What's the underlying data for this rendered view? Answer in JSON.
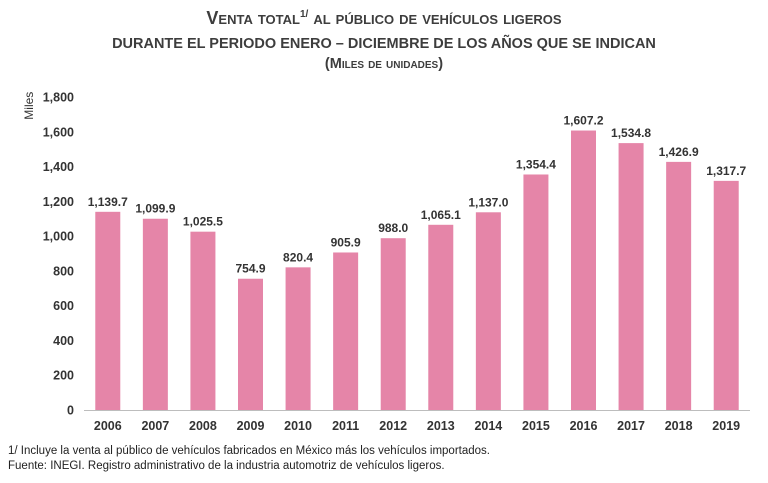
{
  "header": {
    "title_main": "Venta total",
    "title_sup": "1/",
    "title_rest": " al público de vehículos ligeros",
    "subtitle": "DURANTE EL PERIODO ENERO – DICIEMBRE DE LOS AÑOS QUE SE INDICAN",
    "units": "(Miles de unidades)"
  },
  "chart_data": {
    "type": "bar",
    "title": "Venta total al público de vehículos ligeros",
    "ylabel": "Miles",
    "xlabel": "",
    "ylim": [
      0,
      1800
    ],
    "yticks": [
      0,
      200,
      400,
      600,
      800,
      1000,
      1200,
      1400,
      1600,
      1800
    ],
    "ytick_labels": [
      "0",
      "200",
      "400",
      "600",
      "800",
      "1,000",
      "1,200",
      "1,400",
      "1,600",
      "1,800"
    ],
    "categories": [
      "2006",
      "2007",
      "2008",
      "2009",
      "2010",
      "2011",
      "2012",
      "2013",
      "2014",
      "2015",
      "2016",
      "2017",
      "2018",
      "2019"
    ],
    "values": [
      1139.7,
      1099.9,
      1025.5,
      754.9,
      820.4,
      905.9,
      988.0,
      1065.1,
      1137.0,
      1354.4,
      1607.2,
      1534.8,
      1426.9,
      1317.7
    ],
    "value_labels": [
      "1,139.7",
      "1,099.9",
      "1,025.5",
      "754.9",
      "820.4",
      "905.9",
      "988.0",
      "1,065.1",
      "1,137.0",
      "1,354.4",
      "1,607.2",
      "1,534.8",
      "1,426.9",
      "1,317.7"
    ],
    "bar_color": "#e585a8",
    "grid": false,
    "legend": "none"
  },
  "footnotes": {
    "note": "1/ Incluye la venta al público de vehículos fabricados en México más los vehículos importados.",
    "source": "Fuente: INEGI. Registro administrativo de la industria automotriz de vehículos ligeros."
  }
}
